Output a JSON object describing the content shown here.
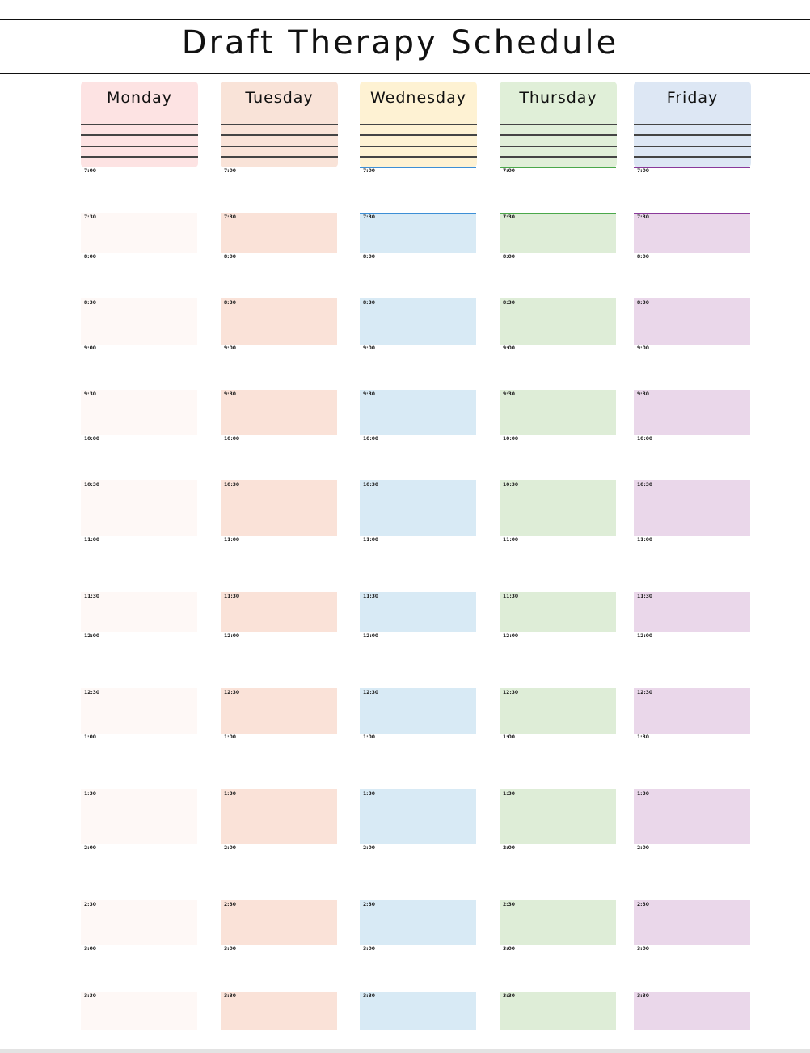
{
  "title": "Draft Therapy Schedule",
  "days": [
    {
      "name": "Monday",
      "header_color": "#fde3e3",
      "slot_color": "#fef8f6",
      "accent": ""
    },
    {
      "name": "Tuesday",
      "header_color": "#f9e3d8",
      "slot_color": "#fae2d8",
      "accent": ""
    },
    {
      "name": "Wednesday",
      "header_color": "#fef2d3",
      "slot_color": "#d8eaf5",
      "accent": "#3d8fd6"
    },
    {
      "name": "Thursday",
      "header_color": "#e0efd8",
      "slot_color": "#deedd7",
      "accent": "#4aa84a"
    },
    {
      "name": "Friday",
      "header_color": "#dde7f4",
      "slot_color": "#ead7ea",
      "accent": "#8a3a9a"
    }
  ],
  "times": {
    "hours": [
      "7:00",
      "8:00",
      "9:00",
      "10:00",
      "11:00",
      "12:00",
      "1:00",
      "2:00",
      "3:00"
    ],
    "half_hours": [
      "7:30",
      "8:30",
      "9:30",
      "10:30",
      "11:30",
      "12:30",
      "1:30",
      "2:30",
      "3:30"
    ],
    "friday_hours": [
      "7:00",
      "8:00",
      "9:00",
      "10:00",
      "11:00",
      "12:00",
      "1:30",
      "2:00",
      "3:00"
    ]
  }
}
